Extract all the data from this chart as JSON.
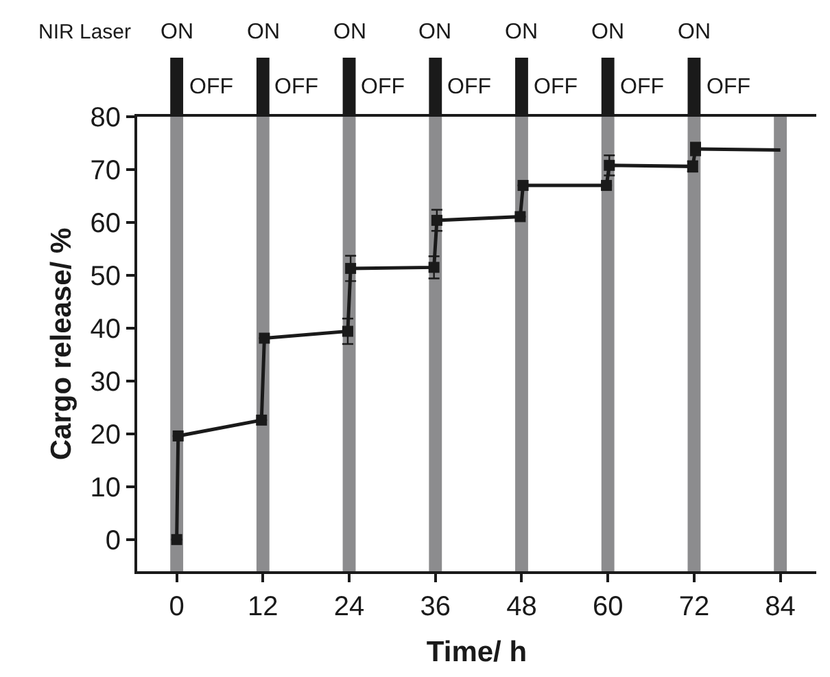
{
  "chart_data": {
    "type": "line",
    "xlabel": "Time/ h",
    "ylabel": "Cargo release/ %",
    "xlim": [
      -5.5,
      89
    ],
    "xticks": [
      0,
      12,
      24,
      36,
      48,
      60,
      72,
      84
    ],
    "ylim": [
      -6,
      80
    ],
    "yticks": [
      0,
      10,
      20,
      30,
      40,
      50,
      60,
      70,
      80
    ],
    "series": [
      {
        "color": "#1a1a1a",
        "x": [
          0,
          0.2,
          11.8,
          12.2,
          23.8,
          24.2,
          35.8,
          36.2,
          47.8,
          48.2,
          59.8,
          60.2,
          71.8,
          72.2
        ],
        "values": [
          0,
          19.6,
          22.6,
          38.1,
          39.4,
          51.3,
          51.5,
          60.4,
          61.1,
          67.0,
          67.0,
          70.8,
          70.6,
          73.9
        ],
        "errors": [
          null,
          null,
          null,
          null,
          2.4,
          2.4,
          2.1,
          2.0,
          null,
          null,
          null,
          1.9,
          1.0,
          1.2
        ],
        "marker": "square"
      },
      {
        "color": "#1a1a1a",
        "x": [
          72.2,
          84
        ],
        "values": [
          73.9,
          73.7
        ]
      }
    ],
    "bands": [
      {
        "axis": "x",
        "from": -0.9,
        "to": 0.9,
        "color": "#8c8c8e"
      },
      {
        "axis": "x",
        "from": 11.1,
        "to": 12.9,
        "color": "#8c8c8e"
      },
      {
        "axis": "x",
        "from": 23.1,
        "to": 24.9,
        "color": "#8c8c8e"
      },
      {
        "axis": "x",
        "from": 35.1,
        "to": 36.9,
        "color": "#8c8c8e"
      },
      {
        "axis": "x",
        "from": 47.1,
        "to": 48.9,
        "color": "#8c8c8e"
      },
      {
        "axis": "x",
        "from": 59.1,
        "to": 60.9,
        "color": "#8c8c8e"
      },
      {
        "axis": "x",
        "from": 71.1,
        "to": 72.9,
        "color": "#8c8c8e"
      },
      {
        "axis": "x",
        "from": 83.1,
        "to": 84.9,
        "color": "#8c8c8e"
      }
    ],
    "annotations": [
      "NIR Laser",
      "ON",
      "ON",
      "ON",
      "ON",
      "ON",
      "ON",
      "ON",
      "OFF",
      "OFF",
      "OFF",
      "OFF",
      "OFF",
      "OFF",
      "OFF"
    ],
    "grid": false,
    "line_style": "solid"
  }
}
